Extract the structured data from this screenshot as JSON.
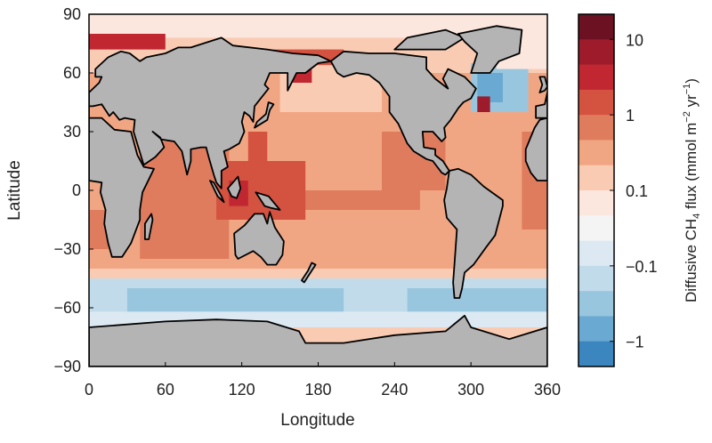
{
  "chart_data": {
    "type": "heatmap",
    "map_projection": "equirectangular",
    "xlabel": "Longitude",
    "ylabel": "Latitude",
    "xlim": [
      0,
      360
    ],
    "ylim": [
      -90,
      90
    ],
    "x_ticks": [
      "0",
      "60",
      "120",
      "180",
      "240",
      "300",
      "360"
    ],
    "x_tick_values": [
      0,
      60,
      120,
      180,
      240,
      300,
      360
    ],
    "y_ticks": [
      "90",
      "60",
      "30",
      "0",
      "−30",
      "−60",
      "−90"
    ],
    "y_tick_values": [
      90,
      60,
      30,
      0,
      -30,
      -60,
      -90
    ],
    "land_color": "#b4b4b4",
    "colorbar": {
      "label_prefix": "Diffusive CH",
      "label_sub": "4",
      "label_mid": " flux (mmol m",
      "label_sup1": "−2",
      "label_mid2": " yr",
      "label_sup2": "−1",
      "label_suffix": ")",
      "scale": "symmetric log",
      "tick_labels": [
        "10",
        "1",
        "0.1",
        "−0.1",
        "−1"
      ],
      "tick_bin_positions": [
        1,
        4,
        7,
        10,
        13
      ],
      "colors": [
        "#6b1121",
        "#9d1b2b",
        "#c12731",
        "#d45240",
        "#e07c5e",
        "#f1a683",
        "#f9cbb3",
        "#fce7de",
        "#f4f4f4",
        "#dde9f2",
        "#c1dbeb",
        "#98c6df",
        "#6aa9d1",
        "#3c86c0"
      ]
    }
  }
}
